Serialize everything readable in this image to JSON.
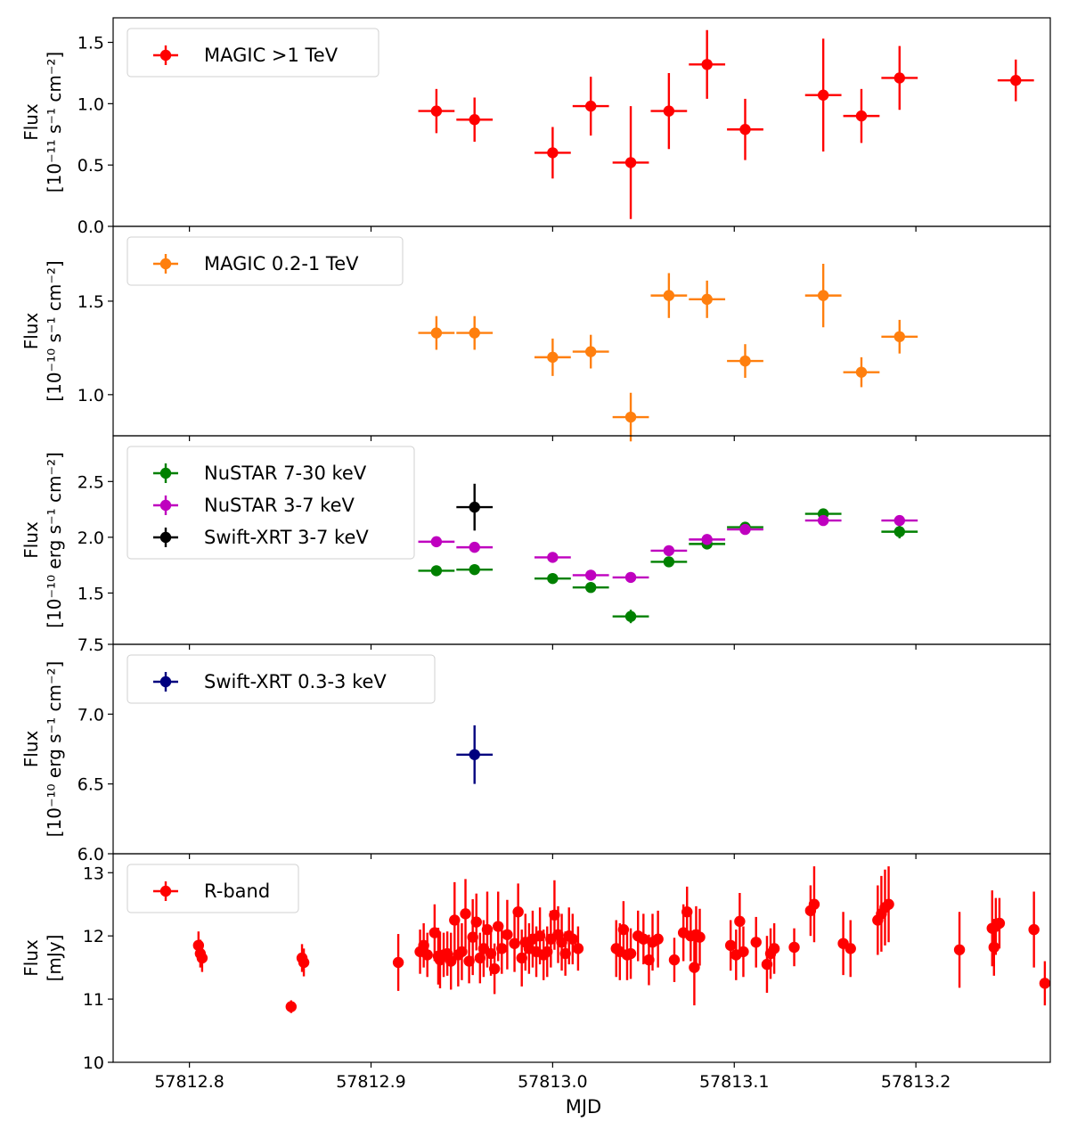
{
  "chart_data": {
    "type": "scatter",
    "xlabel": "MJD",
    "xlim": [
      57812.758,
      57813.274
    ],
    "xticks": [
      "57812.8",
      "57812.9",
      "57813.0",
      "57813.1",
      "57813.2"
    ],
    "panels": [
      {
        "name": "magic-high",
        "ylabel_line1": "Flux",
        "ylabel_line2": "[10⁻¹¹ s⁻¹ cm⁻²]",
        "ylim": [
          0.0,
          1.7
        ],
        "yticks": [
          "0.0",
          "0.5",
          "1.0",
          "1.5"
        ],
        "series": [
          {
            "name": "MAGIC >1 TeV",
            "color": "#ff0000",
            "x": [
              57812.936,
              57812.957,
              57813.0,
              57813.021,
              57813.043,
              57813.064,
              57813.085,
              57813.106,
              57813.149,
              57813.17,
              57813.191,
              57813.255
            ],
            "y": [
              0.94,
              0.87,
              0.6,
              0.98,
              0.52,
              0.94,
              1.32,
              0.79,
              1.07,
              0.9,
              1.21,
              1.19
            ],
            "yerr": [
              0.18,
              0.18,
              0.21,
              0.24,
              0.46,
              0.31,
              0.28,
              0.25,
              0.46,
              0.22,
              0.26,
              0.17
            ],
            "xerr": [
              0.01,
              0.01,
              0.01,
              0.01,
              0.01,
              0.01,
              0.01,
              0.01,
              0.01,
              0.01,
              0.01,
              0.01
            ]
          }
        ]
      },
      {
        "name": "magic-low",
        "ylabel_line1": "Flux",
        "ylabel_line2": "[10⁻¹⁰ s⁻¹ cm⁻²]",
        "ylim": [
          0.78,
          1.9
        ],
        "yticks": [
          "1.0",
          "1.5"
        ],
        "series": [
          {
            "name": "MAGIC 0.2-1 TeV",
            "color": "#ff7f0e",
            "x": [
              57812.936,
              57812.957,
              57813.0,
              57813.021,
              57813.043,
              57813.064,
              57813.085,
              57813.106,
              57813.149,
              57813.17,
              57813.191
            ],
            "y": [
              1.33,
              1.33,
              1.2,
              1.23,
              0.88,
              1.53,
              1.51,
              1.18,
              1.53,
              1.12,
              1.31
            ],
            "yerr": [
              0.09,
              0.09,
              0.1,
              0.09,
              0.13,
              0.12,
              0.1,
              0.09,
              0.17,
              0.08,
              0.09
            ],
            "xerr": [
              0.01,
              0.01,
              0.01,
              0.01,
              0.01,
              0.01,
              0.01,
              0.01,
              0.01,
              0.01,
              0.01
            ]
          }
        ]
      },
      {
        "name": "xray-hard",
        "ylabel_line1": "Flux",
        "ylabel_line2": "[10⁻¹⁰ erg s⁻¹ cm⁻²]",
        "ylim": [
          1.04,
          2.91
        ],
        "yticks": [
          "1.5",
          "2.0",
          "2.5"
        ],
        "series": [
          {
            "name": "NuSTAR 7-30 keV",
            "color": "#008000",
            "x": [
              57812.936,
              57812.957,
              57813.0,
              57813.021,
              57813.043,
              57813.064,
              57813.085,
              57813.106,
              57813.149,
              57813.191
            ],
            "y": [
              1.7,
              1.71,
              1.63,
              1.55,
              1.29,
              1.78,
              1.94,
              2.09,
              2.21,
              2.05
            ],
            "yerr": [
              0.02,
              0.02,
              0.02,
              0.02,
              0.06,
              0.02,
              0.02,
              0.02,
              0.02,
              0.06
            ],
            "xerr": [
              0.01,
              0.01,
              0.01,
              0.01,
              0.01,
              0.01,
              0.01,
              0.01,
              0.01,
              0.01
            ]
          },
          {
            "name": "NuSTAR 3-7 keV",
            "color": "#bf00bf",
            "x": [
              57812.936,
              57812.957,
              57813.0,
              57813.021,
              57813.043,
              57813.064,
              57813.085,
              57813.106,
              57813.149,
              57813.191
            ],
            "y": [
              1.96,
              1.91,
              1.82,
              1.66,
              1.64,
              1.88,
              1.98,
              2.07,
              2.15,
              2.15
            ],
            "yerr": [
              0.02,
              0.02,
              0.02,
              0.02,
              0.03,
              0.02,
              0.02,
              0.02,
              0.02,
              0.04
            ],
            "xerr": [
              0.01,
              0.01,
              0.01,
              0.01,
              0.01,
              0.01,
              0.01,
              0.01,
              0.01,
              0.01
            ]
          },
          {
            "name": "Swift-XRT 3-7 keV",
            "color": "#000000",
            "x": [
              57812.957
            ],
            "y": [
              2.27
            ],
            "yerr": [
              0.21
            ],
            "xerr": [
              0.01
            ]
          }
        ]
      },
      {
        "name": "xray-soft",
        "ylabel_line1": "Flux",
        "ylabel_line2": "[10⁻¹⁰ erg s⁻¹ cm⁻²]",
        "ylim": [
          6.0,
          7.5
        ],
        "yticks": [
          "6.0",
          "6.5",
          "7.0",
          "7.5"
        ],
        "series": [
          {
            "name": "Swift-XRT 0.3-3 keV",
            "color": "#00007f",
            "x": [
              57812.957
            ],
            "y": [
              6.71
            ],
            "yerr": [
              0.21
            ],
            "xerr": [
              0.01
            ]
          }
        ]
      },
      {
        "name": "optical",
        "ylabel_line1": "Flux",
        "ylabel_line2": "[mJy]",
        "ylim": [
          10.0,
          13.3
        ],
        "yticks": [
          "10",
          "11",
          "12",
          "13"
        ],
        "series": [
          {
            "name": "R-band",
            "color": "#ff0000",
            "x": [
              57812.805,
              57812.806,
              57812.807,
              57812.856,
              57812.862,
              57812.863,
              57812.915,
              57812.927,
              57812.929,
              57812.931,
              57812.935,
              57812.937,
              57812.938,
              57812.94,
              57812.942,
              57812.944,
              57812.946,
              57812.948,
              57812.95,
              57812.952,
              57812.954,
              57812.956,
              57812.958,
              57812.96,
              57812.962,
              57812.964,
              57812.966,
              57812.968,
              57812.97,
              57812.972,
              57812.975,
              57812.979,
              57812.981,
              57812.983,
              57812.985,
              57812.987,
              57812.989,
              57812.991,
              57812.993,
              57812.995,
              57812.997,
              57812.999,
              57813.001,
              57813.003,
              57813.005,
              57813.007,
              57813.009,
              57813.011,
              57813.014,
              57813.035,
              57813.037,
              57813.039,
              57813.041,
              57813.043,
              57813.047,
              57813.05,
              57813.053,
              57813.055,
              57813.058,
              57813.067,
              57813.072,
              57813.074,
              57813.076,
              57813.078,
              57813.079,
              57813.081,
              57813.098,
              57813.101,
              57813.103,
              57813.105,
              57813.112,
              57813.118,
              57813.12,
              57813.122,
              57813.133,
              57813.142,
              57813.144,
              57813.16,
              57813.164,
              57813.179,
              57813.181,
              57813.183,
              57813.185,
              57813.224,
              57813.242,
              57813.243,
              57813.244,
              57813.246,
              57813.265,
              57813.271
            ],
            "y": [
              11.85,
              11.72,
              11.65,
              10.88,
              11.65,
              11.58,
              11.58,
              11.75,
              11.85,
              11.7,
              12.05,
              11.68,
              11.62,
              11.7,
              11.72,
              11.6,
              12.25,
              11.7,
              11.75,
              12.35,
              11.6,
              11.98,
              12.22,
              11.65,
              11.8,
              12.1,
              11.72,
              11.48,
              12.15,
              11.8,
              12.02,
              11.88,
              12.38,
              11.65,
              11.9,
              11.8,
              11.95,
              11.75,
              12.0,
              11.7,
              11.75,
              11.95,
              12.33,
              12.02,
              11.9,
              11.72,
              12.0,
              11.95,
              11.8,
              11.8,
              11.75,
              12.1,
              11.7,
              11.72,
              12.0,
              11.95,
              11.62,
              11.9,
              11.95,
              11.62,
              12.05,
              12.38,
              12.0,
              11.5,
              12.02,
              11.98,
              11.85,
              11.7,
              12.23,
              11.75,
              11.9,
              11.55,
              11.72,
              11.8,
              11.82,
              12.4,
              12.5,
              11.88,
              11.8,
              12.25,
              12.35,
              12.45,
              12.5,
              11.78,
              12.12,
              11.82,
              12.15,
              12.2,
              12.1,
              11.25
            ],
            "yerr": [
              0.22,
              0.22,
              0.22,
              0.1,
              0.22,
              0.22,
              0.45,
              0.35,
              0.35,
              0.35,
              0.45,
              0.45,
              0.45,
              0.35,
              0.35,
              0.45,
              0.6,
              0.5,
              0.45,
              0.55,
              0.35,
              0.6,
              0.45,
              0.4,
              0.45,
              0.6,
              0.35,
              0.4,
              0.55,
              0.4,
              0.55,
              0.45,
              0.45,
              0.45,
              0.45,
              0.4,
              0.45,
              0.4,
              0.45,
              0.4,
              0.4,
              0.45,
              0.55,
              0.45,
              0.45,
              0.35,
              0.45,
              0.4,
              0.35,
              0.45,
              0.45,
              0.45,
              0.4,
              0.4,
              0.4,
              0.4,
              0.4,
              0.45,
              0.45,
              0.35,
              0.45,
              0.4,
              0.4,
              0.6,
              0.45,
              0.45,
              0.4,
              0.4,
              0.45,
              0.4,
              0.4,
              0.45,
              0.4,
              0.4,
              0.3,
              0.4,
              0.6,
              0.5,
              0.45,
              0.55,
              0.6,
              0.6,
              0.6,
              0.6,
              0.6,
              0.45,
              0.45,
              0.4,
              0.6,
              0.35
            ],
            "xerr": []
          }
        ]
      }
    ]
  }
}
